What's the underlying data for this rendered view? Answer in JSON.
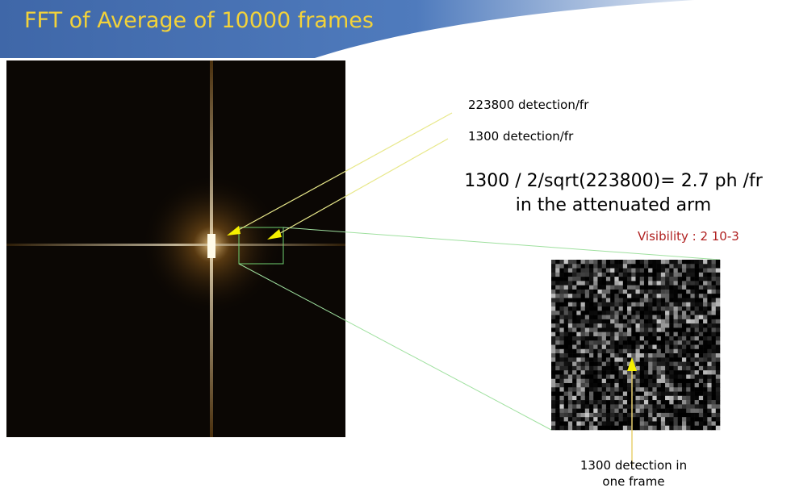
{
  "header": {
    "title": "FFT of Average of 10000 frames"
  },
  "annotations": [
    "223800 detection/fr",
    "1300 detection/fr"
  ],
  "formula": [
    "1300 / 2/sqrt(223800)= 2.7 ph /fr",
    "in the attenuated arm"
  ],
  "visibility": "Visibility : 2 10-3",
  "inset_caption": [
    "1300 detection in",
    "one frame"
  ]
}
